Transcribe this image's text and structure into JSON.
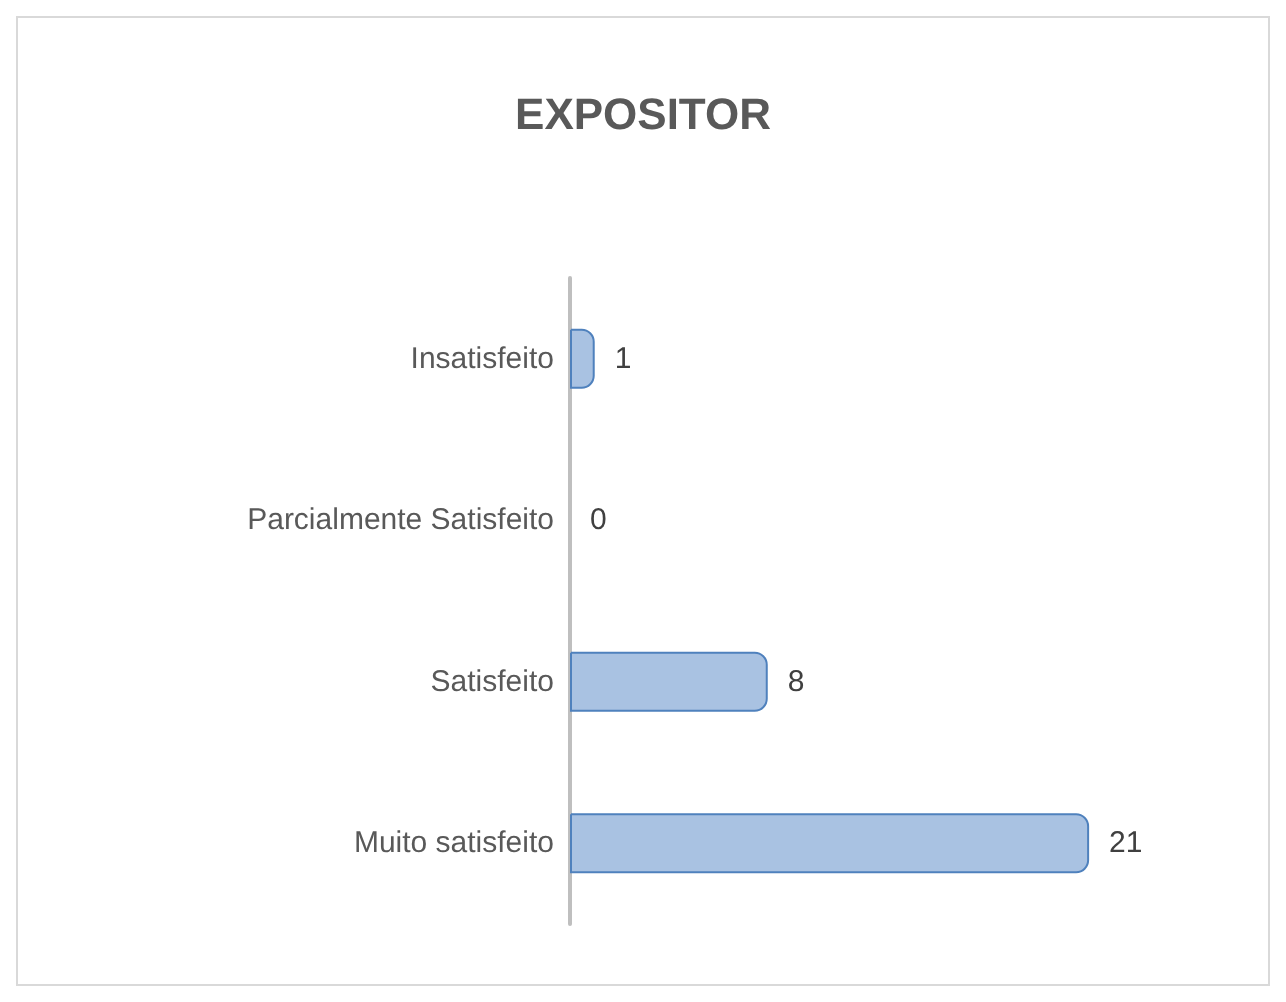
{
  "chart_data": {
    "type": "bar",
    "title": "EXPOSITOR",
    "orientation": "horizontal",
    "categories": [
      "Insatisfeito",
      "Parcialmente Satisfeito",
      "Satisfeito",
      "Muito satisfeito"
    ],
    "values": [
      1,
      0,
      8,
      21
    ],
    "color": "#a9c2e2",
    "data_labels": true,
    "tick_labels": "y"
  }
}
